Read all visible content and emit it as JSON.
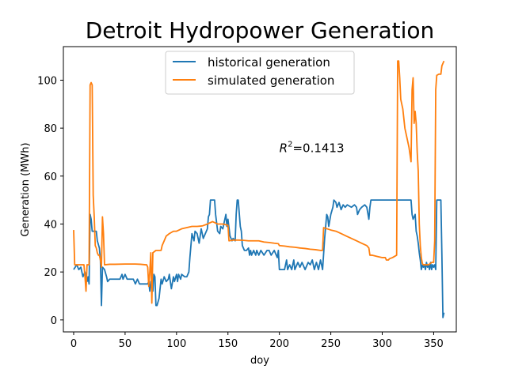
{
  "chart_data": {
    "type": "line",
    "title": "Detroit Hydropower Generation",
    "xlabel": "doy",
    "ylabel": "Generation (MWh)",
    "xlim": [
      -10,
      372
    ],
    "ylim": [
      -5,
      114
    ],
    "xticks": [
      0,
      50,
      100,
      150,
      200,
      250,
      300,
      350
    ],
    "yticks": [
      0,
      20,
      40,
      60,
      80,
      100
    ],
    "grid": false,
    "legend_position": "upper-center",
    "annotation": {
      "prefix": "R",
      "sup": "2",
      "suffix": "=0.1413",
      "x": 200,
      "y": 70
    },
    "series": [
      {
        "name": "historical generation",
        "color": "#1f77b4",
        "points": [
          [
            0,
            21
          ],
          [
            3,
            23
          ],
          [
            5,
            21
          ],
          [
            7,
            22
          ],
          [
            9,
            18
          ],
          [
            11,
            20
          ],
          [
            13,
            16
          ],
          [
            14,
            18
          ],
          [
            15,
            15
          ],
          [
            16,
            44
          ],
          [
            17,
            42
          ],
          [
            18,
            37
          ],
          [
            20,
            37
          ],
          [
            22,
            37
          ],
          [
            23,
            33
          ],
          [
            25,
            30
          ],
          [
            26,
            25
          ],
          [
            27,
            6
          ],
          [
            28,
            22
          ],
          [
            30,
            21
          ],
          [
            32,
            18
          ],
          [
            33,
            16
          ],
          [
            35,
            17
          ],
          [
            40,
            17
          ],
          [
            45,
            17
          ],
          [
            47,
            19
          ],
          [
            48,
            17
          ],
          [
            50,
            19
          ],
          [
            52,
            17
          ],
          [
            55,
            17
          ],
          [
            58,
            17
          ],
          [
            60,
            15
          ],
          [
            62,
            17
          ],
          [
            64,
            15
          ],
          [
            70,
            15
          ],
          [
            72,
            15
          ],
          [
            73,
            16
          ],
          [
            74,
            12
          ],
          [
            75,
            16
          ],
          [
            77,
            12
          ],
          [
            78,
            19
          ],
          [
            79,
            18
          ],
          [
            80,
            6
          ],
          [
            81,
            6
          ],
          [
            83,
            9
          ],
          [
            85,
            17
          ],
          [
            86,
            15
          ],
          [
            88,
            18
          ],
          [
            90,
            16
          ],
          [
            92,
            17
          ],
          [
            93,
            19
          ],
          [
            95,
            13
          ],
          [
            97,
            18
          ],
          [
            98,
            16
          ],
          [
            100,
            19
          ],
          [
            101,
            16
          ],
          [
            102,
            19
          ],
          [
            104,
            17
          ],
          [
            105,
            19
          ],
          [
            108,
            18
          ],
          [
            110,
            18
          ],
          [
            112,
            20
          ],
          [
            113,
            26
          ],
          [
            115,
            36
          ],
          [
            117,
            33
          ],
          [
            118,
            37
          ],
          [
            120,
            36
          ],
          [
            122,
            32
          ],
          [
            124,
            38
          ],
          [
            126,
            34
          ],
          [
            128,
            36
          ],
          [
            130,
            38
          ],
          [
            131,
            43
          ],
          [
            132,
            44
          ],
          [
            133,
            50
          ],
          [
            135,
            50
          ],
          [
            137,
            50
          ],
          [
            138,
            44
          ],
          [
            140,
            37
          ],
          [
            142,
            36
          ],
          [
            143,
            39
          ],
          [
            145,
            38
          ],
          [
            146,
            40
          ],
          [
            148,
            44
          ],
          [
            149,
            39
          ],
          [
            150,
            42
          ],
          [
            152,
            35
          ],
          [
            154,
            33
          ],
          [
            155,
            34
          ],
          [
            157,
            33
          ],
          [
            158,
            44
          ],
          [
            159,
            50
          ],
          [
            160,
            50
          ],
          [
            162,
            39
          ],
          [
            163,
            37
          ],
          [
            164,
            31
          ],
          [
            166,
            29
          ],
          [
            168,
            29
          ],
          [
            170,
            30
          ],
          [
            171,
            27
          ],
          [
            172,
            29
          ],
          [
            173,
            27
          ],
          [
            175,
            29
          ],
          [
            177,
            27
          ],
          [
            178,
            29
          ],
          [
            180,
            27
          ],
          [
            182,
            29
          ],
          [
            185,
            27
          ],
          [
            188,
            29
          ],
          [
            190,
            29
          ],
          [
            192,
            27
          ],
          [
            195,
            29
          ],
          [
            198,
            26
          ],
          [
            199,
            29
          ],
          [
            200,
            21
          ],
          [
            202,
            21
          ],
          [
            205,
            21
          ],
          [
            207,
            25
          ],
          [
            208,
            21
          ],
          [
            210,
            23
          ],
          [
            212,
            21
          ],
          [
            214,
            25
          ],
          [
            215,
            21
          ],
          [
            218,
            24
          ],
          [
            220,
            22
          ],
          [
            222,
            24
          ],
          [
            225,
            21
          ],
          [
            228,
            24
          ],
          [
            230,
            23
          ],
          [
            232,
            25
          ],
          [
            234,
            21
          ],
          [
            236,
            24
          ],
          [
            238,
            21
          ],
          [
            240,
            25
          ],
          [
            242,
            21
          ],
          [
            244,
            34
          ],
          [
            246,
            44
          ],
          [
            247,
            43
          ],
          [
            248,
            39
          ],
          [
            250,
            44
          ],
          [
            252,
            47
          ],
          [
            253,
            50
          ],
          [
            255,
            49
          ],
          [
            256,
            47
          ],
          [
            258,
            49
          ],
          [
            260,
            46
          ],
          [
            262,
            48
          ],
          [
            264,
            47
          ],
          [
            266,
            48
          ],
          [
            270,
            47
          ],
          [
            273,
            48
          ],
          [
            275,
            47
          ],
          [
            276,
            44
          ],
          [
            278,
            46
          ],
          [
            280,
            47
          ],
          [
            283,
            48
          ],
          [
            285,
            47
          ],
          [
            287,
            42
          ],
          [
            288,
            47
          ],
          [
            289,
            50
          ],
          [
            290,
            50
          ],
          [
            295,
            50
          ],
          [
            300,
            50
          ],
          [
            305,
            50
          ],
          [
            310,
            50
          ],
          [
            315,
            50
          ],
          [
            320,
            50
          ],
          [
            325,
            50
          ],
          [
            328,
            50
          ],
          [
            329,
            44
          ],
          [
            330,
            42
          ],
          [
            332,
            44
          ],
          [
            333,
            37
          ],
          [
            334,
            35
          ],
          [
            335,
            32
          ],
          [
            336,
            28
          ],
          [
            337,
            25
          ],
          [
            338,
            21
          ],
          [
            339,
            23
          ],
          [
            340,
            22
          ],
          [
            341,
            23
          ],
          [
            342,
            21
          ],
          [
            343,
            24
          ],
          [
            344,
            22
          ],
          [
            345,
            23
          ],
          [
            346,
            21
          ],
          [
            347,
            24
          ],
          [
            348,
            21
          ],
          [
            349,
            23
          ],
          [
            350,
            22
          ],
          [
            351,
            23
          ],
          [
            352,
            21
          ],
          [
            353,
            50
          ],
          [
            355,
            50
          ],
          [
            357,
            50
          ],
          [
            358,
            27
          ],
          [
            359,
            1
          ],
          [
            360,
            3
          ]
        ]
      },
      {
        "name": "simulated generation",
        "color": "#ff7f0e",
        "points": [
          [
            0,
            37.5
          ],
          [
            1,
            23
          ],
          [
            5,
            23
          ],
          [
            10,
            23
          ],
          [
            11,
            18
          ],
          [
            12,
            12
          ],
          [
            13,
            23
          ],
          [
            15,
            23
          ],
          [
            16,
            98
          ],
          [
            17,
            99
          ],
          [
            18,
            98
          ],
          [
            19,
            52
          ],
          [
            20,
            43
          ],
          [
            21,
            31
          ],
          [
            22,
            30
          ],
          [
            23,
            28
          ],
          [
            24,
            27
          ],
          [
            25,
            27
          ],
          [
            26,
            25
          ],
          [
            27,
            22
          ],
          [
            28,
            43
          ],
          [
            29,
            36
          ],
          [
            30,
            23
          ],
          [
            35,
            23.2
          ],
          [
            40,
            23.2
          ],
          [
            50,
            23.3
          ],
          [
            60,
            23.3
          ],
          [
            65,
            23.2
          ],
          [
            70,
            23
          ],
          [
            71,
            23
          ],
          [
            72,
            22
          ],
          [
            73,
            14
          ],
          [
            74,
            20
          ],
          [
            75,
            28
          ],
          [
            76,
            7
          ],
          [
            77,
            28
          ],
          [
            80,
            29
          ],
          [
            85,
            29
          ],
          [
            86,
            31
          ],
          [
            88,
            33
          ],
          [
            90,
            35
          ],
          [
            93,
            36
          ],
          [
            97,
            37
          ],
          [
            100,
            37
          ],
          [
            105,
            38
          ],
          [
            110,
            38.5
          ],
          [
            115,
            39
          ],
          [
            120,
            39
          ],
          [
            125,
            39.2
          ],
          [
            130,
            40
          ],
          [
            135,
            41
          ],
          [
            140,
            40
          ],
          [
            145,
            40
          ],
          [
            150,
            39.5
          ],
          [
            151,
            33
          ],
          [
            155,
            33.3
          ],
          [
            160,
            33.3
          ],
          [
            165,
            33.2
          ],
          [
            170,
            33
          ],
          [
            175,
            33
          ],
          [
            180,
            33
          ],
          [
            185,
            32.5
          ],
          [
            190,
            32.3
          ],
          [
            195,
            32
          ],
          [
            199,
            31.8
          ],
          [
            200,
            31
          ],
          [
            205,
            30.8
          ],
          [
            210,
            30.5
          ],
          [
            215,
            30.3
          ],
          [
            220,
            30
          ],
          [
            225,
            29.8
          ],
          [
            230,
            29.5
          ],
          [
            235,
            29.3
          ],
          [
            240,
            29
          ],
          [
            242,
            29
          ],
          [
            243,
            38.5
          ],
          [
            245,
            38.2
          ],
          [
            250,
            37.5
          ],
          [
            255,
            37
          ],
          [
            260,
            36
          ],
          [
            265,
            35
          ],
          [
            270,
            34
          ],
          [
            275,
            33
          ],
          [
            280,
            32
          ],
          [
            285,
            31
          ],
          [
            287,
            30
          ],
          [
            288,
            27
          ],
          [
            290,
            27
          ],
          [
            295,
            26.5
          ],
          [
            300,
            26
          ],
          [
            303,
            26
          ],
          [
            304,
            25
          ],
          [
            306,
            25
          ],
          [
            307,
            25.5
          ],
          [
            310,
            26
          ],
          [
            312,
            26.5
          ],
          [
            314,
            27
          ],
          [
            315,
            108
          ],
          [
            316,
            108
          ],
          [
            317,
            101
          ],
          [
            318,
            92
          ],
          [
            319,
            90
          ],
          [
            320,
            88
          ],
          [
            322,
            80
          ],
          [
            324,
            76
          ],
          [
            326,
            72
          ],
          [
            327,
            69
          ],
          [
            328,
            66
          ],
          [
            329,
            96
          ],
          [
            330,
            101
          ],
          [
            331,
            82
          ],
          [
            332,
            87
          ],
          [
            333,
            82
          ],
          [
            334,
            70
          ],
          [
            335,
            62
          ],
          [
            336,
            40
          ],
          [
            337,
            31
          ],
          [
            338,
            26
          ],
          [
            339,
            23.5
          ],
          [
            340,
            23
          ],
          [
            345,
            23
          ],
          [
            348,
            24
          ],
          [
            350,
            24
          ],
          [
            351,
            33
          ],
          [
            352,
            96
          ],
          [
            353,
            102
          ],
          [
            355,
            102.5
          ],
          [
            357,
            102.5
          ],
          [
            358,
            106
          ],
          [
            360,
            108
          ]
        ]
      }
    ]
  }
}
